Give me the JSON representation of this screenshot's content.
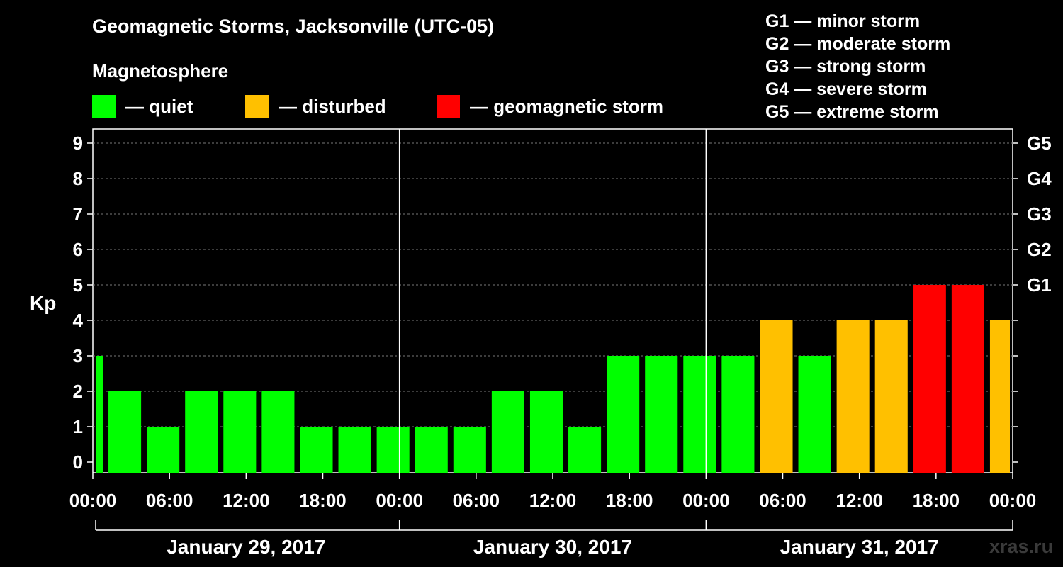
{
  "title": "Geomagnetic Storms, Jacksonville (UTC-05)",
  "subtitle": "Magnetosphere",
  "legend": [
    {
      "label": "— quiet",
      "color": "#00ff00"
    },
    {
      "label": "— disturbed",
      "color": "#ffc000"
    },
    {
      "label": "— geomagnetic storm",
      "color": "#ff0000"
    }
  ],
  "g_legend": [
    "G1 — minor storm",
    "G2 — moderate storm",
    "G3 — strong storm",
    "G4 — severe storm",
    "G5 — extreme storm"
  ],
  "watermark": "xras.ru",
  "chart_data": {
    "type": "bar",
    "title": "Geomagnetic Storms, Jacksonville (UTC-05)",
    "ylabel": "Kp",
    "ylim": [
      0,
      9
    ],
    "yticks": [
      "0",
      "1",
      "2",
      "3",
      "4",
      "5",
      "6",
      "7",
      "8",
      "9"
    ],
    "right_axis": [
      {
        "label": "G1",
        "kp": 5
      },
      {
        "label": "G2",
        "kp": 6
      },
      {
        "label": "G3",
        "kp": 7
      },
      {
        "label": "G4",
        "kp": 8
      },
      {
        "label": "G5",
        "kp": 9
      }
    ],
    "xtick_labels": [
      "00:00",
      "06:00",
      "12:00",
      "18:00",
      "00:00",
      "06:00",
      "12:00",
      "18:00",
      "00:00",
      "06:00",
      "12:00",
      "18:00",
      "00:00"
    ],
    "days": [
      "January 29, 2017",
      "January 30, 2017",
      "January 31, 2017"
    ],
    "hours_start_offset": -2,
    "interval_hours": 3,
    "values": [
      3,
      2,
      1,
      2,
      2,
      2,
      1,
      1,
      1,
      1,
      1,
      2,
      2,
      1,
      3,
      3,
      3,
      3,
      4,
      3,
      4,
      4,
      5,
      5,
      4
    ],
    "colors": {
      "quiet": "#00ff00",
      "disturbed": "#ffc000",
      "storm": "#ff0000"
    },
    "grid": true
  }
}
